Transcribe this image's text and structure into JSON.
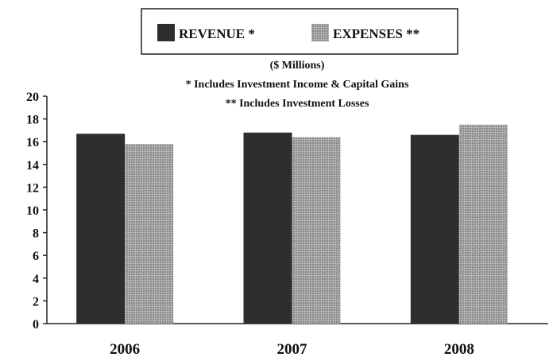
{
  "chart_data": {
    "type": "bar",
    "categories": [
      "2006",
      "2007",
      "2008"
    ],
    "series": [
      {
        "name": "REVENUE *",
        "values": [
          16.7,
          16.8,
          16.6
        ],
        "color": "#2e2e2e",
        "pattern": "solid"
      },
      {
        "name": "EXPENSES **",
        "values": [
          15.8,
          16.4,
          17.5
        ],
        "color": "#9a9a9a",
        "pattern": "stipple"
      }
    ],
    "subtitle_lines": [
      "($ Millions)",
      "* Includes Investment Income & Capital Gains",
      "** Includes Investment Losses"
    ],
    "ylim": [
      0,
      20
    ],
    "yticks": [
      "0",
      "2",
      "4",
      "6",
      "8",
      "10",
      "12",
      "14",
      "16",
      "18",
      "20"
    ],
    "grid": false,
    "legend_position": "top-center",
    "title": "",
    "xlabel": "",
    "ylabel": ""
  }
}
